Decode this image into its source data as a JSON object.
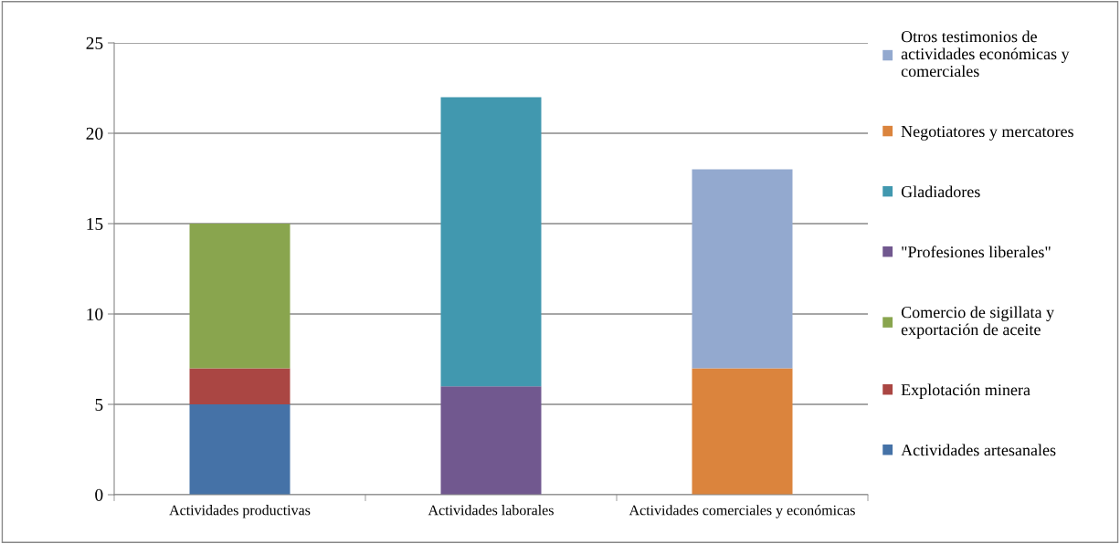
{
  "chart_data": {
    "type": "bar",
    "stacked": true,
    "categories": [
      "Actividades productivas",
      "Actividades laborales",
      "Actividades comerciales y económicas"
    ],
    "series": [
      {
        "name": "Actividades artesanales",
        "color": "#4572a7",
        "values": [
          5,
          null,
          null
        ]
      },
      {
        "name": "Explotación minera",
        "color": "#aa4643",
        "values": [
          2,
          null,
          null
        ]
      },
      {
        "name": "Comercio de sigillata y\nexportación de aceite",
        "color": "#89a54e",
        "values": [
          8,
          null,
          null
        ]
      },
      {
        "name": "\"Profesiones liberales\"",
        "color": "#71588f",
        "values": [
          null,
          6,
          null
        ]
      },
      {
        "name": "Gladiadores",
        "color": "#4198af",
        "values": [
          null,
          16,
          null
        ]
      },
      {
        "name": "Negotiatores y mercatores",
        "color": "#db843d",
        "values": [
          null,
          null,
          7
        ]
      },
      {
        "name": "Otros testimonios de\nactividades económicas y\ncomerciales",
        "color": "#93a9cf",
        "values": [
          null,
          null,
          11
        ]
      }
    ],
    "ylim": [
      0,
      25
    ],
    "yticks": [
      0,
      5,
      10,
      15,
      20,
      25
    ],
    "grid": "y",
    "legend": "right"
  }
}
